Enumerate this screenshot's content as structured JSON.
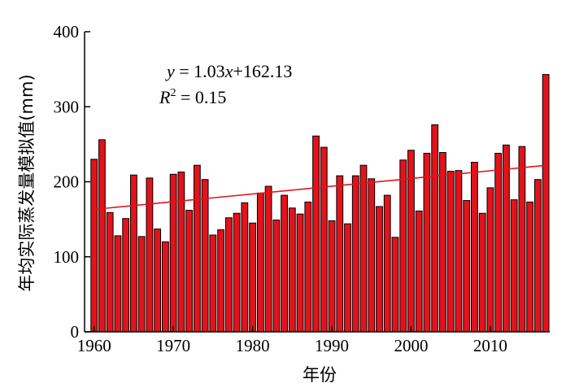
{
  "chart_data": {
    "type": "bar",
    "xlabel": "年份",
    "ylabel": "年均实际蒸发量模拟值(mm)",
    "xlim": [
      1958.8,
      2017.5
    ],
    "ylim": [
      0,
      400
    ],
    "x_ticks": [
      1960,
      1970,
      1980,
      1990,
      2000,
      2010
    ],
    "y_ticks": [
      0,
      100,
      200,
      300,
      400
    ],
    "x_tick_labels": [
      "1960",
      "1970",
      "1980",
      "1990",
      "2000",
      "2010"
    ],
    "y_tick_labels": [
      "0",
      "100",
      "200",
      "300",
      "400"
    ],
    "x": [
      1960,
      1961,
      1962,
      1963,
      1964,
      1965,
      1966,
      1967,
      1968,
      1969,
      1970,
      1971,
      1972,
      1973,
      1974,
      1975,
      1976,
      1977,
      1978,
      1979,
      1980,
      1981,
      1982,
      1983,
      1984,
      1985,
      1986,
      1987,
      1988,
      1989,
      1990,
      1991,
      1992,
      1993,
      1994,
      1995,
      1996,
      1997,
      1998,
      1999,
      2000,
      2001,
      2002,
      2003,
      2004,
      2005,
      2006,
      2007,
      2008,
      2009,
      2010,
      2011,
      2012,
      2013,
      2014,
      2015,
      2016,
      2017
    ],
    "values": [
      230,
      256,
      159,
      128,
      151,
      209,
      127,
      205,
      137,
      120,
      210,
      213,
      162,
      222,
      203,
      129,
      136,
      152,
      158,
      172,
      145,
      185,
      194,
      149,
      182,
      165,
      157,
      173,
      261,
      246,
      148,
      208,
      144,
      208,
      222,
      204,
      167,
      182,
      126,
      229,
      242,
      161,
      238,
      276,
      239,
      214,
      215,
      175,
      226,
      158,
      192,
      238,
      249,
      176,
      247,
      173,
      203,
      343
    ],
    "bar_color": "#e2131b",
    "trendline": {
      "slope": 1.03,
      "intercept": 162.13,
      "color": "#e2131b",
      "equation_y": "y",
      "equation_rhs": " = 1.03",
      "equation_x": "x",
      "equation_tail": "+162.13",
      "r2_label": "R",
      "r2_sup": "2",
      "r2_value": " = 0.15"
    },
    "grid": false,
    "legend": "none"
  }
}
